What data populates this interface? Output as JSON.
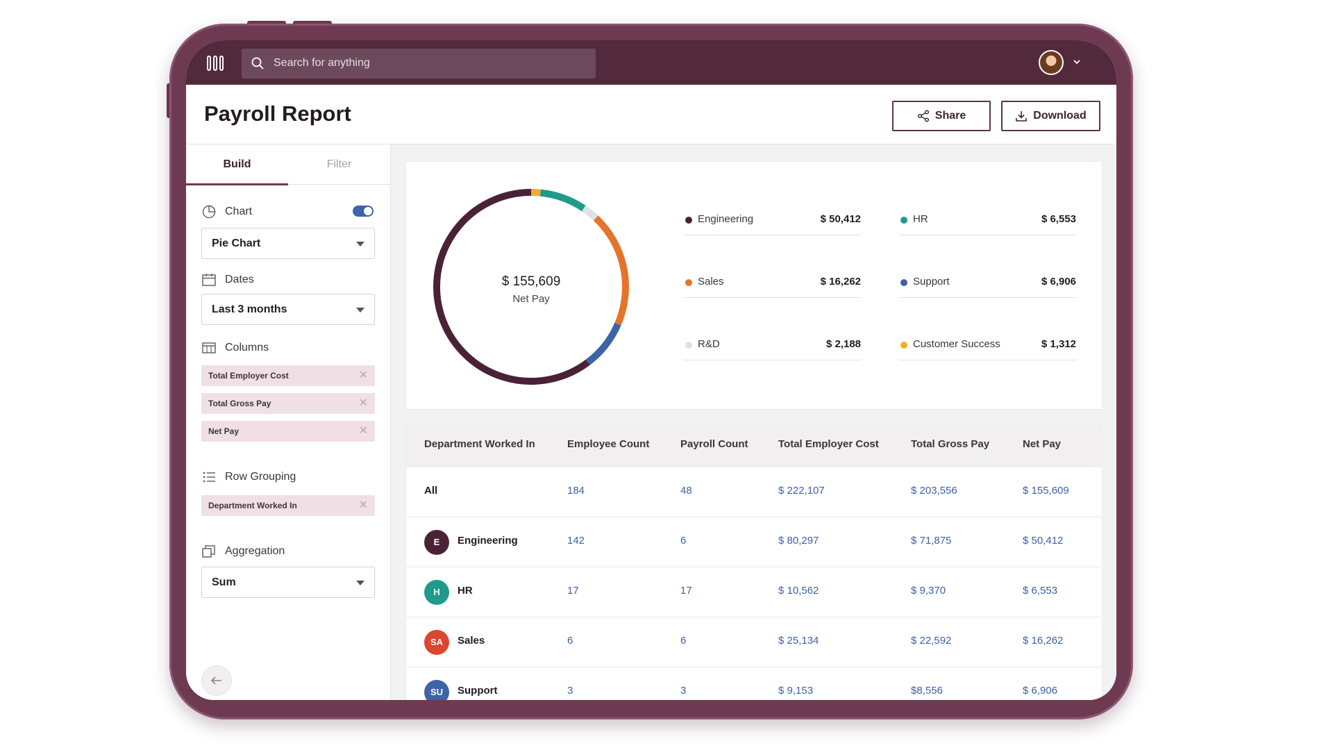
{
  "search": {
    "placeholder": "Search for anything"
  },
  "page": {
    "title": "Payroll Report"
  },
  "actions": {
    "share_label": "Share",
    "download_label": "Download"
  },
  "sidebar": {
    "tabs": [
      {
        "label": "Build"
      },
      {
        "label": "Filter"
      }
    ],
    "chart": {
      "label": "Chart",
      "enabled": true,
      "select_value": "Pie Chart"
    },
    "dates": {
      "label": "Dates",
      "select_value": "Last 3 months"
    },
    "columns": {
      "label": "Columns",
      "items": [
        {
          "label": "Total Employer Cost"
        },
        {
          "label": "Total Gross Pay"
        },
        {
          "label": "Net Pay"
        }
      ]
    },
    "row_grouping": {
      "label": "Row Grouping",
      "items": [
        {
          "label": "Department Worked In"
        }
      ]
    },
    "aggregation": {
      "label": "Aggregation",
      "select_value": "Sum"
    }
  },
  "summary": {
    "total_value": "$ 155,609",
    "total_label": "Net Pay",
    "legend": [
      {
        "name": "Engineering",
        "value": "$ 50,412",
        "color": "#4a2236"
      },
      {
        "name": "HR",
        "value": "$ 6,553",
        "color": "#1f9a8b"
      },
      {
        "name": "Sales",
        "value": "$ 16,262",
        "color": "#e5742a"
      },
      {
        "name": "Support",
        "value": "$ 6,906",
        "color": "#3d63a8"
      },
      {
        "name": "R&D",
        "value": "$ 2,188",
        "color": "#d9e5e5"
      },
      {
        "name": "Customer Success",
        "value": "$ 1,312",
        "color": "#f2b01e"
      }
    ]
  },
  "chart_data": {
    "type": "pie",
    "categories": [
      "Engineering",
      "Sales",
      "Support",
      "HR",
      "R&D",
      "Customer Success"
    ],
    "values": [
      50412,
      16262,
      6906,
      6553,
      2188,
      1312
    ],
    "colors": [
      "#4a2236",
      "#e5742a",
      "#3d63a8",
      "#1f9a8b",
      "#d9e5e5",
      "#f2b01e"
    ],
    "title": "",
    "center_value": "$ 155,609",
    "center_label": "Net Pay"
  },
  "table": {
    "headers": [
      "Department Worked In",
      "Employee Count",
      "Payroll Count",
      "Total Employer Cost",
      "Total Gross Pay",
      "Net Pay"
    ],
    "rows": [
      {
        "dept": "All",
        "badge": "",
        "badge_color": "",
        "employee_count": "184",
        "payroll_count": "48",
        "employer_cost": "$ 222,107",
        "gross_pay": "$ 203,556",
        "net_pay": "$ 155,609"
      },
      {
        "dept": "Engineering",
        "badge": "E",
        "badge_color": "#4a2236",
        "employee_count": "142",
        "payroll_count": "6",
        "employer_cost": "$ 80,297",
        "gross_pay": "$ 71,875",
        "net_pay": "$ 50,412"
      },
      {
        "dept": "HR",
        "badge": "H",
        "badge_color": "#1f9a8b",
        "employee_count": "17",
        "payroll_count": "17",
        "employer_cost": "$ 10,562",
        "gross_pay": "$ 9,370",
        "net_pay": "$ 6,553"
      },
      {
        "dept": "Sales",
        "badge": "SA",
        "badge_color": "#d8472e",
        "employee_count": "6",
        "payroll_count": "6",
        "employer_cost": "$ 25,134",
        "gross_pay": "$ 22,592",
        "net_pay": "$ 16,262"
      },
      {
        "dept": "Support",
        "badge": "SU",
        "badge_color": "#3d63a8",
        "employee_count": "3",
        "payroll_count": "3",
        "employer_cost": "$ 9,153",
        "gross_pay": "$8,556",
        "net_pay": "$ 6,906"
      }
    ]
  }
}
